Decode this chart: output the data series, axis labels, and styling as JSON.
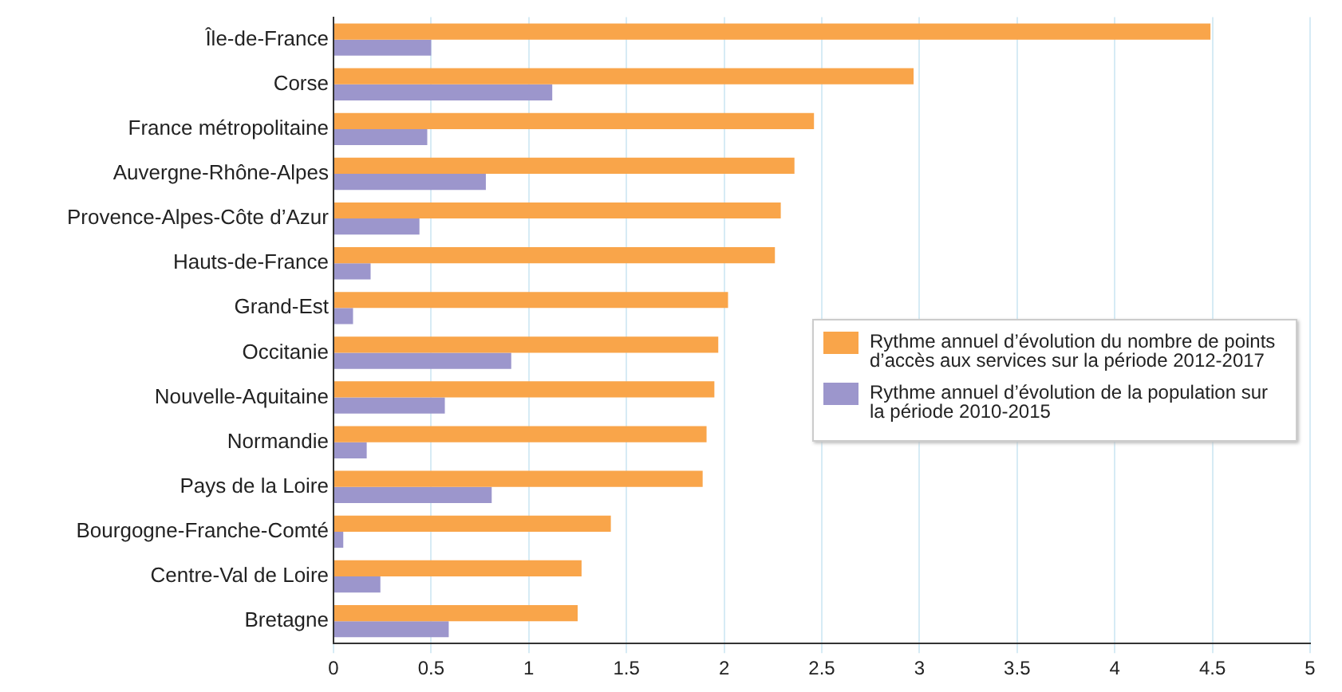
{
  "chart_data": {
    "type": "bar",
    "orientation": "horizontal",
    "categories": [
      "Île-de-France",
      "Corse",
      "France métropolitaine",
      "Auvergne-Rhône-Alpes",
      "Provence-Alpes-Côte d’Azur",
      "Hauts-de-France",
      "Grand-Est",
      "Occitanie",
      "Nouvelle-Aquitaine",
      "Normandie",
      "Pays de la Loire",
      "Bourgogne-Franche-Comté",
      "Centre-Val de Loire",
      "Bretagne"
    ],
    "series": [
      {
        "name": "Rythme annuel d’évolution du nombre de points d’accès aux services sur la période 2012-2017",
        "color": "#f9a54a",
        "values": [
          4.49,
          2.97,
          2.46,
          2.36,
          2.29,
          2.26,
          2.02,
          1.97,
          1.95,
          1.91,
          1.89,
          1.42,
          1.27,
          1.25
        ]
      },
      {
        "name": "Rythme annuel d’évolution de la population sur la période 2010-2015",
        "color": "#9c96cc",
        "values": [
          0.5,
          1.12,
          0.48,
          0.78,
          0.44,
          0.19,
          0.1,
          0.91,
          0.57,
          0.17,
          0.81,
          0.05,
          0.24,
          0.59
        ]
      }
    ],
    "xlim": [
      0,
      5
    ],
    "xticks": [
      0,
      0.5,
      1,
      1.5,
      2,
      2.5,
      3,
      3.5,
      4,
      4.5,
      5
    ],
    "grid": "x",
    "legend": "right"
  }
}
